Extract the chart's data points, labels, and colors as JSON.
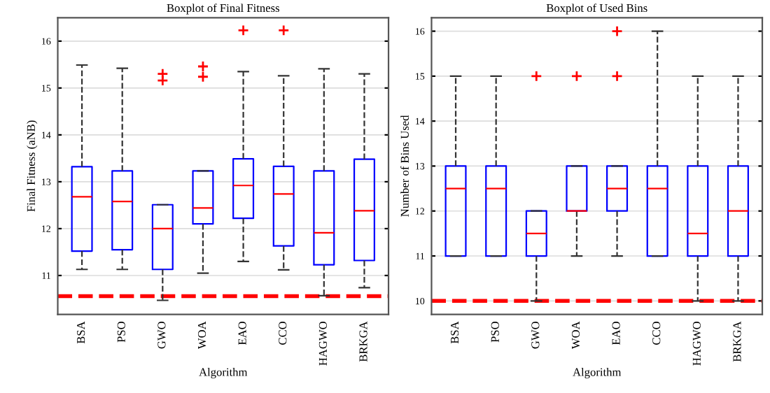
{
  "chart_data": [
    {
      "type": "box",
      "title": "Boxplot of Final Fitness",
      "xlabel": "Algorithm",
      "ylabel": "Final Fitness (aNB)",
      "categories": [
        "BSA",
        "PSO",
        "GWO",
        "WOA",
        "EAO",
        "CCO",
        "HAGWO",
        "BRKGA"
      ],
      "series": [
        {
          "color": "#0000ff",
          "boxes": [
            {
              "low": 11.13,
              "q1": 11.52,
              "median": 12.68,
              "q3": 13.32,
              "high": 15.49
            },
            {
              "low": 11.13,
              "q1": 11.55,
              "median": 12.58,
              "q3": 13.23,
              "high": 15.42
            },
            {
              "low": 10.47,
              "q1": 11.13,
              "median": 12.0,
              "q3": 12.51,
              "high": 12.51,
              "outliers": [
                15.3,
                15.16
              ]
            },
            {
              "low": 11.05,
              "q1": 12.1,
              "median": 12.44,
              "q3": 13.23,
              "high": 13.23,
              "outliers": [
                15.46,
                15.24
              ]
            },
            {
              "low": 11.3,
              "q1": 12.22,
              "median": 12.92,
              "q3": 13.49,
              "high": 15.35,
              "outliers": [
                16.23
              ]
            },
            {
              "low": 11.12,
              "q1": 11.63,
              "median": 12.74,
              "q3": 13.33,
              "high": 15.26,
              "outliers": [
                16.23
              ]
            },
            {
              "low": 10.57,
              "q1": 11.23,
              "median": 11.91,
              "q3": 13.23,
              "high": 15.41
            },
            {
              "low": 10.74,
              "q1": 11.32,
              "median": 12.38,
              "q3": 13.48,
              "high": 15.3
            }
          ]
        }
      ],
      "ylim": [
        10.17,
        16.5
      ],
      "yticks": [
        11,
        12,
        13,
        14,
        15,
        16
      ],
      "grid": "y",
      "ref_lines": [
        {
          "axis": "y",
          "value": 10.56,
          "color": "#ff0000",
          "line_style": "dashed"
        }
      ]
    },
    {
      "type": "box",
      "title": "Boxplot of Used Bins",
      "xlabel": "Algorithm",
      "ylabel": "Number of Bins Used",
      "categories": [
        "BSA",
        "PSO",
        "GWO",
        "WOA",
        "EAO",
        "CCO",
        "HAGWO",
        "BRKGA"
      ],
      "series": [
        {
          "color": "#0000ff",
          "boxes": [
            {
              "low": 11,
              "q1": 11,
              "median": 12.5,
              "q3": 13,
              "high": 15
            },
            {
              "low": 11,
              "q1": 11,
              "median": 12.5,
              "q3": 13,
              "high": 15
            },
            {
              "low": 10,
              "q1": 11,
              "median": 11.5,
              "q3": 12,
              "high": 12,
              "outliers": [
                15
              ]
            },
            {
              "low": 11,
              "q1": 12,
              "median": 12,
              "q3": 13,
              "high": 13,
              "outliers": [
                15
              ]
            },
            {
              "low": 11,
              "q1": 12,
              "median": 12.5,
              "q3": 13,
              "high": 13,
              "outliers": [
                15,
                16
              ]
            },
            {
              "low": 11,
              "q1": 11,
              "median": 12.5,
              "q3": 13,
              "high": 16
            },
            {
              "low": 10,
              "q1": 11,
              "median": 11.5,
              "q3": 13,
              "high": 15
            },
            {
              "low": 10,
              "q1": 11,
              "median": 12,
              "q3": 13,
              "high": 15
            }
          ]
        }
      ],
      "ylim": [
        9.7,
        16.3
      ],
      "yticks": [
        10,
        11,
        12,
        13,
        14,
        15,
        16
      ],
      "grid": "y",
      "ref_lines": [
        {
          "axis": "y",
          "value": 10,
          "color": "#ff0000",
          "line_style": "dashed"
        }
      ]
    }
  ]
}
